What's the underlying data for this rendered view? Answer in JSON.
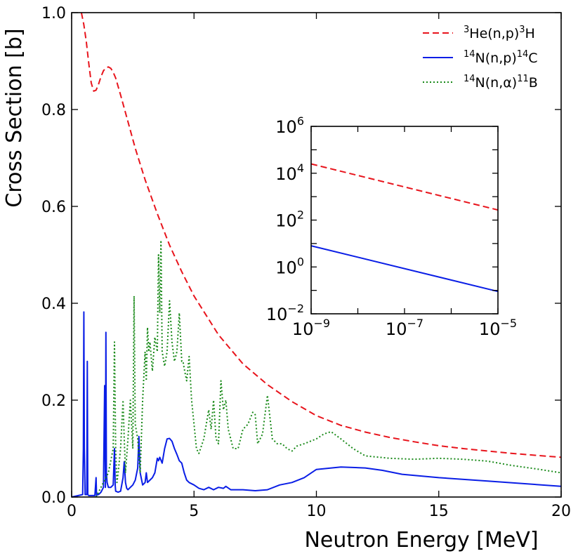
{
  "chart_data": [
    {
      "type": "line",
      "xlabel": "Neutron Energy [MeV]",
      "ylabel": "Cross Section [b]",
      "xlim": [
        0,
        20
      ],
      "ylim": [
        0,
        1.0
      ],
      "xticks": [
        0,
        5,
        10,
        15,
        20
      ],
      "xtick_labels": [
        "0",
        "5",
        "10",
        "15",
        "20"
      ],
      "yticks": [
        0,
        0.2,
        0.4,
        0.6,
        0.8,
        1.0
      ],
      "ytick_labels": [
        "0.0",
        "0.2",
        "0.4",
        "0.6",
        "0.8",
        "1.0"
      ],
      "legend_position": "top-right",
      "series": [
        {
          "name": "He3",
          "label_pre": "3",
          "label_a": "He(n,p)",
          "label_sup": "3",
          "label_b": "H",
          "color": "#e8141c",
          "style": "dashed",
          "x": [
            0.4,
            0.5,
            0.6,
            0.7,
            0.8,
            0.9,
            1.0,
            1.1,
            1.2,
            1.3,
            1.4,
            1.5,
            1.6,
            1.7,
            1.8,
            2.0,
            2.3,
            2.6,
            3.0,
            3.5,
            4.0,
            4.5,
            5.0,
            5.5,
            6.0,
            7.0,
            8.0,
            9.0,
            10.0,
            11.0,
            12.0,
            13.0,
            14.0,
            15.0,
            16.0,
            17.0,
            18.0,
            19.0,
            20.0
          ],
          "y": [
            1.0,
            0.975,
            0.94,
            0.895,
            0.855,
            0.838,
            0.84,
            0.852,
            0.868,
            0.88,
            0.886,
            0.888,
            0.885,
            0.877,
            0.865,
            0.83,
            0.775,
            0.72,
            0.655,
            0.585,
            0.52,
            0.465,
            0.415,
            0.375,
            0.335,
            0.275,
            0.232,
            0.197,
            0.168,
            0.148,
            0.134,
            0.123,
            0.114,
            0.106,
            0.1,
            0.095,
            0.09,
            0.086,
            0.082
          ]
        },
        {
          "name": "N14np",
          "label_pre": "14",
          "label_a": "N(n,p)",
          "label_sup": "14",
          "label_b": "C",
          "color": "#0a1ee6",
          "style": "solid",
          "x": [
            0.0,
            0.45,
            0.48,
            0.5,
            0.52,
            0.55,
            0.62,
            0.64,
            0.66,
            0.7,
            0.8,
            0.95,
            1.0,
            1.02,
            1.05,
            1.1,
            1.2,
            1.3,
            1.35,
            1.38,
            1.4,
            1.42,
            1.45,
            1.5,
            1.6,
            1.7,
            1.75,
            1.78,
            1.8,
            1.9,
            2.0,
            2.1,
            2.15,
            2.2,
            2.25,
            2.3,
            2.4,
            2.5,
            2.6,
            2.7,
            2.75,
            2.8,
            2.9,
            3.0,
            3.05,
            3.1,
            3.2,
            3.3,
            3.4,
            3.5,
            3.55,
            3.6,
            3.7,
            3.8,
            3.9,
            4.0,
            4.1,
            4.2,
            4.3,
            4.4,
            4.5,
            4.6,
            4.7,
            4.8,
            5.0,
            5.2,
            5.4,
            5.6,
            5.8,
            6.0,
            6.2,
            6.3,
            6.5,
            6.8,
            7.0,
            7.5,
            8.0,
            8.5,
            9.0,
            9.5,
            10.0,
            11.0,
            12.0,
            12.7,
            13.5,
            15.0,
            17.0,
            20.0
          ],
          "y": [
            0.0,
            0.005,
            0.1,
            0.382,
            0.1,
            0.005,
            0.005,
            0.28,
            0.005,
            0.003,
            0.003,
            0.003,
            0.04,
            0.003,
            0.005,
            0.005,
            0.01,
            0.02,
            0.23,
            0.02,
            0.34,
            0.05,
            0.03,
            0.02,
            0.02,
            0.025,
            0.1,
            0.025,
            0.012,
            0.01,
            0.012,
            0.04,
            0.073,
            0.03,
            0.018,
            0.015,
            0.02,
            0.025,
            0.035,
            0.06,
            0.125,
            0.05,
            0.025,
            0.03,
            0.05,
            0.03,
            0.035,
            0.04,
            0.05,
            0.08,
            0.075,
            0.082,
            0.07,
            0.1,
            0.12,
            0.121,
            0.115,
            0.1,
            0.088,
            0.075,
            0.07,
            0.05,
            0.035,
            0.03,
            0.025,
            0.018,
            0.015,
            0.02,
            0.015,
            0.02,
            0.018,
            0.022,
            0.015,
            0.015,
            0.015,
            0.013,
            0.015,
            0.025,
            0.03,
            0.04,
            0.057,
            0.062,
            0.06,
            0.055,
            0.047,
            0.04,
            0.033,
            0.022
          ]
        },
        {
          "name": "N14na",
          "label_pre": "14",
          "label_a": "N(n,α)",
          "label_sup": "11",
          "label_b": "B",
          "color": "#1a8a1a",
          "style": "dotted",
          "x": [
            1.0,
            1.2,
            1.5,
            1.7,
            1.75,
            1.8,
            1.85,
            1.9,
            2.0,
            2.1,
            2.15,
            2.2,
            2.3,
            2.4,
            2.5,
            2.55,
            2.6,
            2.7,
            2.8,
            2.9,
            3.0,
            3.05,
            3.1,
            3.15,
            3.2,
            3.3,
            3.4,
            3.5,
            3.55,
            3.6,
            3.65,
            3.7,
            3.8,
            3.9,
            4.0,
            4.1,
            4.2,
            4.3,
            4.4,
            4.5,
            4.55,
            4.6,
            4.7,
            4.8,
            4.9,
            5.0,
            5.1,
            5.2,
            5.4,
            5.6,
            5.7,
            5.8,
            5.9,
            6.0,
            6.1,
            6.2,
            6.3,
            6.4,
            6.5,
            6.6,
            6.8,
            7.0,
            7.2,
            7.4,
            7.5,
            7.6,
            7.8,
            8.0,
            8.2,
            8.4,
            8.6,
            8.8,
            9.0,
            9.2,
            9.5,
            10.0,
            10.3,
            10.6,
            11.0,
            11.5,
            12.0,
            13.0,
            14.0,
            15.0,
            16.0,
            17.0,
            18.0,
            19.0,
            20.0
          ],
          "y": [
            0.0,
            0.02,
            0.05,
            0.1,
            0.32,
            0.1,
            0.03,
            0.05,
            0.1,
            0.2,
            0.12,
            0.05,
            0.12,
            0.2,
            0.1,
            0.415,
            0.15,
            0.12,
            0.05,
            0.2,
            0.3,
            0.24,
            0.35,
            0.3,
            0.32,
            0.26,
            0.33,
            0.3,
            0.5,
            0.38,
            0.53,
            0.3,
            0.27,
            0.3,
            0.405,
            0.32,
            0.28,
            0.3,
            0.38,
            0.28,
            0.28,
            0.265,
            0.24,
            0.29,
            0.2,
            0.15,
            0.1,
            0.09,
            0.12,
            0.18,
            0.14,
            0.2,
            0.12,
            0.11,
            0.24,
            0.18,
            0.2,
            0.14,
            0.12,
            0.1,
            0.1,
            0.14,
            0.15,
            0.175,
            0.17,
            0.11,
            0.13,
            0.21,
            0.12,
            0.11,
            0.11,
            0.1,
            0.095,
            0.105,
            0.11,
            0.12,
            0.13,
            0.135,
            0.12,
            0.1,
            0.085,
            0.08,
            0.078,
            0.08,
            0.078,
            0.074,
            0.065,
            0.058,
            0.05
          ]
        }
      ]
    },
    {
      "type": "line",
      "scale": "log-log",
      "xlim": [
        1e-09,
        1e-05
      ],
      "ylim": [
        0.01,
        1000000
      ],
      "x_tick_exponents": [
        "−9",
        "−7",
        "−5"
      ],
      "y_tick_exponents": [
        "−2",
        "0",
        "2",
        "4",
        "6"
      ],
      "tick_base": "10",
      "series": [
        {
          "name": "He3",
          "color": "#e8141c",
          "style": "dashed",
          "x": [
            1e-09,
            1e-05
          ],
          "y": [
            25000,
            270
          ]
        },
        {
          "name": "N14np",
          "color": "#0a1ee6",
          "style": "solid",
          "x": [
            1e-09,
            1e-05
          ],
          "y": [
            8,
            0.09
          ]
        }
      ]
    }
  ]
}
